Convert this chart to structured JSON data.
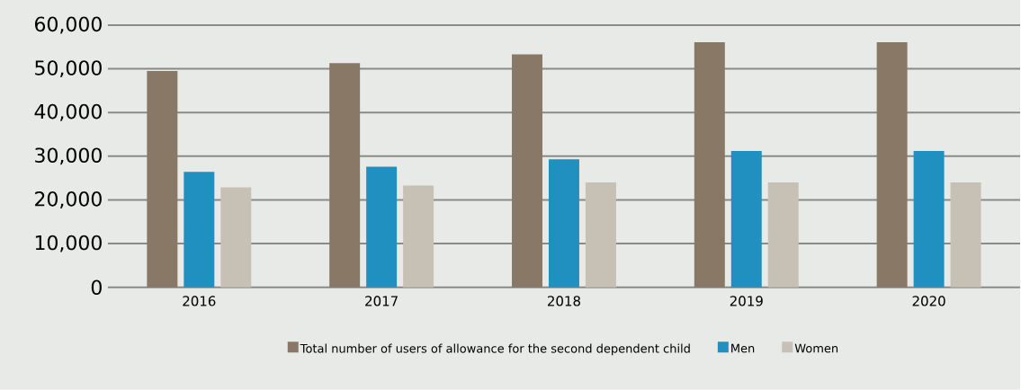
{
  "chart_data": {
    "type": "bar",
    "categories": [
      "2016",
      "2017",
      "2018",
      "2019",
      "2020"
    ],
    "series": [
      {
        "name": "Total number of users of allowance for the second dependent child",
        "color": "#8a7866",
        "values": [
          49500,
          51300,
          53300,
          56100,
          56100
        ]
      },
      {
        "name": "Men",
        "color": "#1f90c0",
        "values": [
          26400,
          27600,
          29300,
          31200,
          31200
        ]
      },
      {
        "name": "Women",
        "color": "#c7c0b4",
        "values": [
          22900,
          23300,
          24000,
          24000,
          24000
        ]
      }
    ],
    "ylim": [
      0,
      60000
    ],
    "yticks": [
      {
        "value": 0,
        "label": "0"
      },
      {
        "value": 10000,
        "label": "10,000"
      },
      {
        "value": 20000,
        "label": "20,000"
      },
      {
        "value": 30000,
        "label": "30,000"
      },
      {
        "value": 40000,
        "label": "40,000"
      },
      {
        "value": 50000,
        "label": "50,000"
      },
      {
        "value": 60000,
        "label": "60,000"
      }
    ],
    "grid": "y",
    "legend": "bottom"
  }
}
